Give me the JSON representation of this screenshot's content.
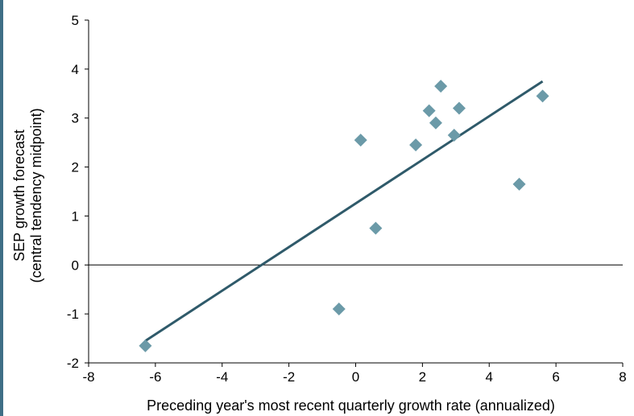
{
  "chart_data": {
    "type": "scatter",
    "title": "",
    "xlabel": "Preceding year's most recent quarterly growth rate (annualized)",
    "ylabel_lines": [
      "SEP growth forecast",
      "(central tendency midpoint)"
    ],
    "xlim": [
      -8,
      8
    ],
    "ylim": [
      -2,
      5
    ],
    "x_ticks": [
      -8,
      -6,
      -4,
      -2,
      0,
      2,
      4,
      6,
      8
    ],
    "y_ticks": [
      -2,
      -1,
      0,
      1,
      2,
      3,
      4,
      5
    ],
    "grid": false,
    "zero_line": true,
    "series": [
      {
        "marker": "diamond",
        "color": "#6b9aa8",
        "points": [
          {
            "x": -6.3,
            "y": -1.65
          },
          {
            "x": -0.5,
            "y": -0.9
          },
          {
            "x": 0.6,
            "y": 0.75
          },
          {
            "x": 0.15,
            "y": 2.55
          },
          {
            "x": 1.8,
            "y": 2.45
          },
          {
            "x": 2.2,
            "y": 3.15
          },
          {
            "x": 2.4,
            "y": 2.9
          },
          {
            "x": 2.55,
            "y": 3.65
          },
          {
            "x": 2.95,
            "y": 2.65
          },
          {
            "x": 3.1,
            "y": 3.2
          },
          {
            "x": 4.9,
            "y": 1.65
          },
          {
            "x": 5.6,
            "y": 3.45
          }
        ]
      }
    ],
    "trendline": {
      "color": "#2f5a6a",
      "start": {
        "x": -6.3,
        "y": -1.55
      },
      "end": {
        "x": 5.6,
        "y": 3.75
      }
    }
  }
}
